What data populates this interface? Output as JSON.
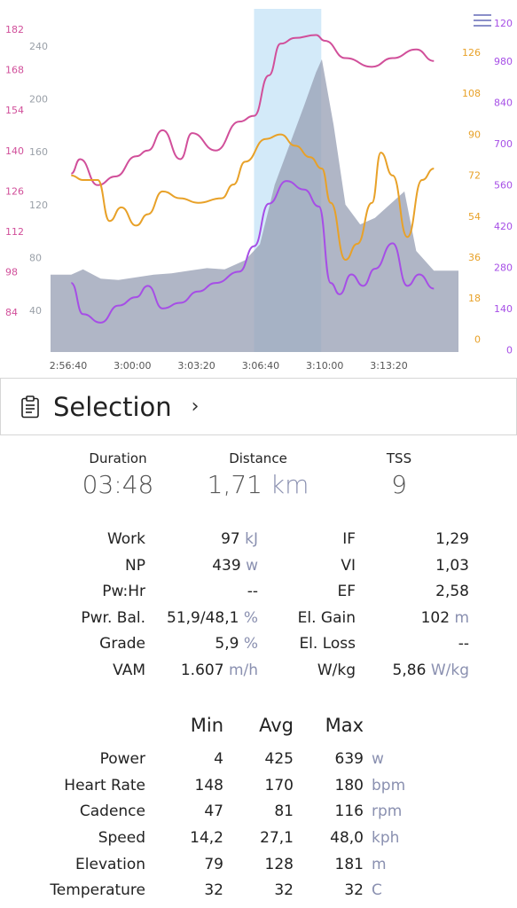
{
  "chart": {
    "axes": {
      "hr": [
        "182",
        "168",
        "154",
        "140",
        "126",
        "112",
        "98",
        "84"
      ],
      "alt": [
        "240",
        "200",
        "160",
        "120",
        "80",
        "40"
      ],
      "cad": [
        "126",
        "108",
        "90",
        "72",
        "54",
        "36",
        "18",
        "0"
      ],
      "pow": [
        "980",
        "840",
        "700",
        "560",
        "420",
        "280",
        "140",
        "0"
      ],
      "top_right": "120",
      "time": [
        "2:56:40",
        "3:00:00",
        "3:03:20",
        "3:06:40",
        "3:10:00",
        "3:13:20"
      ]
    },
    "colors": {
      "hr": "#d14f9a",
      "cadence": "#e8a128",
      "power": "#a64ee6",
      "elevation": "#9aa2b6",
      "selection": "#d3eaf9",
      "alt_axis": "#9aa0a8",
      "menu": "#8a8fc9"
    }
  },
  "chart_data": {
    "type": "line",
    "x_ticks": [
      "2:56:40",
      "3:00:00",
      "3:03:20",
      "3:06:40",
      "3:10:00",
      "3:13:20"
    ],
    "selection_range": [
      "3:07:10",
      "3:10:58"
    ],
    "series": [
      {
        "axis": "hr",
        "color": "#d14f9a",
        "x": [
          "2:56:50",
          "2:57:20",
          "2:58:20",
          "2:59:20",
          "3:00:30",
          "3:01:10",
          "3:02:00",
          "3:03:00",
          "3:03:40",
          "3:05:00",
          "3:06:20",
          "3:07:10",
          "3:08:00",
          "3:08:40",
          "3:09:30",
          "3:10:40",
          "3:11:10",
          "3:12:20",
          "3:13:50",
          "3:15:00",
          "3:16:20",
          "3:17:20"
        ],
        "values": [
          132,
          137,
          128,
          131,
          138,
          140,
          147,
          137,
          146,
          140,
          150,
          152,
          166,
          177,
          179,
          180,
          178,
          172,
          169,
          172,
          175,
          171
        ]
      },
      {
        "axis": "cad",
        "color": "#e8a128",
        "x": [
          "2:56:50",
          "2:57:30",
          "2:58:20",
          "2:59:00",
          "2:59:40",
          "3:00:30",
          "3:01:10",
          "3:02:00",
          "3:03:00",
          "3:04:00",
          "3:05:20",
          "3:06:00",
          "3:06:40",
          "3:07:50",
          "3:08:40",
          "3:09:30",
          "3:10:20",
          "3:11:00",
          "3:11:30",
          "3:12:20",
          "3:13:00",
          "3:13:50",
          "3:14:20",
          "3:15:00",
          "3:15:50",
          "3:16:40",
          "3:17:20"
        ],
        "values": [
          72,
          70,
          70,
          52,
          58,
          50,
          55,
          65,
          62,
          60,
          62,
          68,
          78,
          88,
          90,
          85,
          80,
          75,
          60,
          35,
          42,
          60,
          82,
          72,
          45,
          70,
          75
        ]
      },
      {
        "axis": "pow",
        "color": "#a64ee6",
        "x": [
          "2:56:50",
          "2:57:30",
          "2:58:30",
          "2:59:30",
          "3:00:30",
          "3:01:10",
          "3:02:00",
          "3:03:00",
          "3:04:00",
          "3:05:00",
          "3:06:20",
          "3:07:10",
          "3:08:00",
          "3:09:00",
          "3:10:00",
          "3:10:50",
          "3:11:30",
          "3:12:00",
          "3:12:40",
          "3:13:20",
          "3:14:00",
          "3:15:00",
          "3:15:50",
          "3:16:30",
          "3:17:20"
        ],
        "values": [
          200,
          90,
          60,
          120,
          150,
          190,
          110,
          130,
          170,
          200,
          240,
          330,
          480,
          560,
          530,
          470,
          200,
          160,
          230,
          190,
          250,
          340,
          190,
          230,
          180
        ]
      },
      {
        "axis": "alt",
        "color": "#9aa2b6",
        "x": [
          "2:56:50",
          "2:57:30",
          "2:58:30",
          "2:59:30",
          "3:00:30",
          "3:01:30",
          "3:02:30",
          "3:03:30",
          "3:04:30",
          "3:05:30",
          "3:06:40",
          "3:07:30",
          "3:08:20",
          "3:09:10",
          "3:10:00",
          "3:10:40",
          "3:11:00",
          "3:11:40",
          "3:12:20",
          "3:13:10",
          "3:14:00",
          "3:14:50",
          "3:15:40",
          "3:16:20",
          "3:17:20"
        ],
        "values": [
          67,
          71,
          64,
          63,
          65,
          67,
          68,
          70,
          72,
          71,
          78,
          90,
          135,
          165,
          195,
          220,
          230,
          180,
          120,
          105,
          110,
          120,
          130,
          85,
          70
        ]
      }
    ]
  },
  "selection": {
    "title": "Selection",
    "icon": "clipboard-icon",
    "chevron": "›"
  },
  "summary": {
    "duration": {
      "label": "Duration",
      "value": "03:48"
    },
    "distance": {
      "label": "Distance",
      "value": "1,71",
      "unit": "km"
    },
    "tss": {
      "label": "TSS",
      "value": "9"
    }
  },
  "metrics": [
    {
      "l_label": "Work",
      "l_value": "97",
      "l_unit": "kJ",
      "r_label": "IF",
      "r_value": "1,29",
      "r_unit": ""
    },
    {
      "l_label": "NP",
      "l_value": "439",
      "l_unit": "w",
      "r_label": "VI",
      "r_value": "1,03",
      "r_unit": ""
    },
    {
      "l_label": "Pw:Hr",
      "l_value": "--",
      "l_unit": "",
      "r_label": "EF",
      "r_value": "2,58",
      "r_unit": ""
    },
    {
      "l_label": "Pwr. Bal.",
      "l_value": "51,9/48,1",
      "l_unit": "%",
      "r_label": "El. Gain",
      "r_value": "102",
      "r_unit": "m"
    },
    {
      "l_label": "Grade",
      "l_value": "5,9",
      "l_unit": "%",
      "r_label": "El. Loss",
      "r_value": "--",
      "r_unit": ""
    },
    {
      "l_label": "VAM",
      "l_value": "1.607",
      "l_unit": "m/h",
      "r_label": "W/kg",
      "r_value": "5,86",
      "r_unit": "W/kg"
    }
  ],
  "stats": {
    "headers": {
      "min": "Min",
      "avg": "Avg",
      "max": "Max"
    },
    "rows": [
      {
        "label": "Power",
        "min": "4",
        "avg": "425",
        "max": "639",
        "unit": "w"
      },
      {
        "label": "Heart Rate",
        "min": "148",
        "avg": "170",
        "max": "180",
        "unit": "bpm"
      },
      {
        "label": "Cadence",
        "min": "47",
        "avg": "81",
        "max": "116",
        "unit": "rpm"
      },
      {
        "label": "Speed",
        "min": "14,2",
        "avg": "27,1",
        "max": "48,0",
        "unit": "kph"
      },
      {
        "label": "Elevation",
        "min": "79",
        "avg": "128",
        "max": "181",
        "unit": "m"
      },
      {
        "label": "Temperature",
        "min": "32",
        "avg": "32",
        "max": "32",
        "unit": "C"
      }
    ]
  }
}
